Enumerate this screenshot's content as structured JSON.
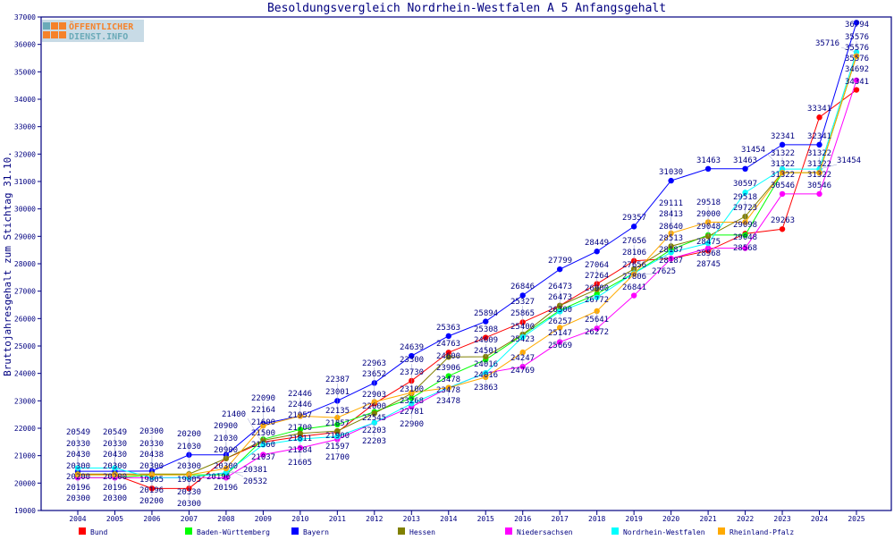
{
  "chart_data": {
    "type": "line",
    "title": "Besoldungsvergleich Nordrhein-Westfalen A 5 Anfangsgehalt",
    "xlabel": "",
    "ylabel": "Bruttojahresgehalt zum Stichtag 31.10.",
    "ylim": [
      19000,
      37000
    ],
    "yticks": [
      19000,
      20000,
      21000,
      22000,
      23000,
      24000,
      25000,
      26000,
      27000,
      28000,
      29000,
      30000,
      31000,
      32000,
      33000,
      34000,
      35000,
      36000,
      37000
    ],
    "x": [
      2004,
      2005,
      2006,
      2007,
      2008,
      2009,
      2010,
      2011,
      2012,
      2013,
      2014,
      2015,
      2016,
      2017,
      2018,
      2019,
      2020,
      2021,
      2022,
      2023,
      2024,
      2025
    ],
    "legend_position": "bottom",
    "grid": false,
    "series": [
      {
        "name": "Bund",
        "color": "#ff0000",
        "values": [
          20300,
          20300,
          19805,
          19805,
          20900,
          21500,
          21700,
          21857,
          22903,
          23730,
          24763,
          25308,
          25865,
          26473,
          27264,
          28106,
          28187,
          28475,
          29098,
          29263,
          33341,
          34341
        ]
      },
      {
        "name": "Baden-Württemberg",
        "color": "#00ff00",
        "values": [
          20200,
          20200,
          20300,
          20300,
          20300,
          21600,
          21957,
          22135,
          22600,
          23100,
          23906,
          24501,
          25400,
          26300,
          26900,
          27656,
          28513,
          29048,
          29048,
          31322,
          31322,
          35576
        ]
      },
      {
        "name": "Bayern",
        "color": "#0000ff",
        "values": [
          20430,
          20430,
          20438,
          21030,
          21030,
          22164,
          22446,
          23001,
          23652,
          24639,
          25363,
          25894,
          26846,
          27799,
          28449,
          29357,
          31030,
          31463,
          31463,
          32341,
          32341,
          36794
        ]
      },
      {
        "name": "Hessen",
        "color": "#808000",
        "values": [
          20330,
          20330,
          20330,
          20330,
          20900,
          21560,
          21811,
          21900,
          22545,
          23268,
          24600,
          24609,
          25423,
          26473,
          27064,
          27806,
          28640,
          29000,
          29723,
          31322,
          31322,
          35576
        ]
      },
      {
        "name": "Niedersachsen",
        "color": "#ff00ff",
        "values": [
          20196,
          20196,
          20196,
          20196,
          20196,
          21037,
          21284,
          21597,
          22203,
          22781,
          23478,
          24016,
          24247,
          25147,
          25641,
          26841,
          28187,
          28568,
          28568,
          30546,
          30546,
          34692
        ]
      },
      {
        "name": "Nordrhein-Westfalen",
        "color": "#00ffff",
        "values": [
          20549,
          20549,
          20200,
          20200,
          20381,
          21400,
          21605,
          21700,
          22203,
          22900,
          23478,
          24016,
          25327,
          26257,
          26772,
          27656,
          28413,
          28745,
          30597,
          31454,
          31454,
          35716
        ]
      },
      {
        "name": "Rheinland-Pfalz",
        "color": "#ffaa00",
        "values": [
          20300,
          20300,
          20300,
          20300,
          20532,
          22090,
          22446,
          22387,
          22963,
          23300,
          23478,
          23863,
          24769,
          25669,
          26272,
          27625,
          29111,
          29518,
          29518,
          31322,
          31322,
          35576
        ]
      }
    ]
  },
  "logo": {
    "line1": "ÖFFENTLICHER",
    "line2": "DIENST.INFO"
  }
}
